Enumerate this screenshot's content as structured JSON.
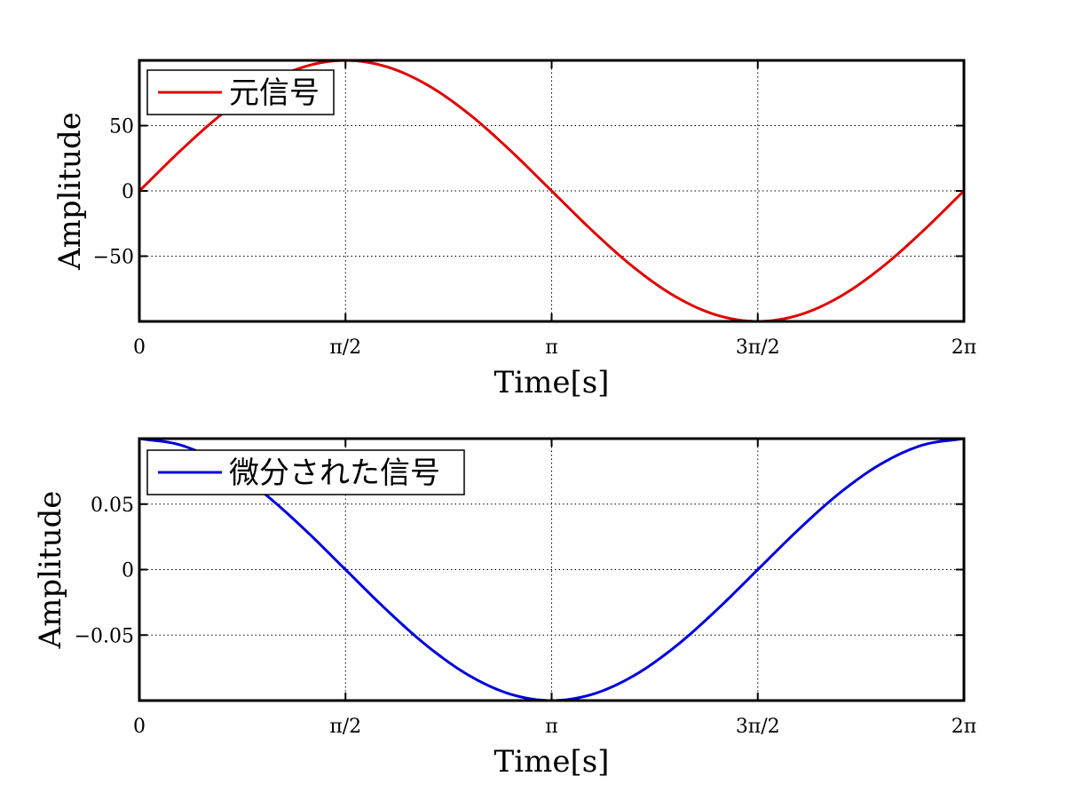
{
  "chart_data": [
    {
      "type": "line",
      "xlabel": "Time[s]",
      "ylabel": "Amplitude",
      "xlim": [
        0,
        6.2832
      ],
      "ylim": [
        -100,
        100
      ],
      "grid": true,
      "legend_position": "top-left",
      "x_ticks": [
        {
          "value": 0,
          "label": "0"
        },
        {
          "value": 1.5708,
          "label": "π/2"
        },
        {
          "value": 3.1416,
          "label": "π"
        },
        {
          "value": 4.7124,
          "label": "3π/2"
        },
        {
          "value": 6.2832,
          "label": "2π"
        }
      ],
      "y_ticks": [
        {
          "value": 50,
          "label": "50"
        },
        {
          "value": 0,
          "label": "0"
        },
        {
          "value": -50,
          "label": "−50"
        }
      ],
      "series": [
        {
          "name": "元信号",
          "color": "#e00000",
          "x": [
            0,
            0.3142,
            0.6283,
            0.9425,
            1.2566,
            1.5708,
            1.885,
            2.1991,
            2.5133,
            2.8274,
            3.1416,
            3.4558,
            3.7699,
            4.0841,
            4.3982,
            4.7124,
            5.0265,
            5.3407,
            5.6549,
            5.969,
            6.2832
          ],
          "y": [
            0,
            30.9,
            58.8,
            80.9,
            95.1,
            100,
            95.1,
            80.9,
            58.8,
            30.9,
            0,
            -30.9,
            -58.8,
            -80.9,
            -95.1,
            -100,
            -95.1,
            -80.9,
            -58.8,
            -30.9,
            0
          ]
        }
      ]
    },
    {
      "type": "line",
      "xlabel": "Time[s]",
      "ylabel": "Amplitude",
      "xlim": [
        0,
        6.2832
      ],
      "ylim": [
        -0.1,
        0.1
      ],
      "grid": true,
      "legend_position": "top-left",
      "x_ticks": [
        {
          "value": 0,
          "label": "0"
        },
        {
          "value": 1.5708,
          "label": "π/2"
        },
        {
          "value": 3.1416,
          "label": "π"
        },
        {
          "value": 4.7124,
          "label": "3π/2"
        },
        {
          "value": 6.2832,
          "label": "2π"
        }
      ],
      "y_ticks": [
        {
          "value": 0.05,
          "label": "0.05"
        },
        {
          "value": 0,
          "label": "0"
        },
        {
          "value": -0.05,
          "label": "−0.05"
        }
      ],
      "series": [
        {
          "name": "微分された信号",
          "color": "#0000dd",
          "x": [
            0,
            0.3142,
            0.6283,
            0.9425,
            1.2566,
            1.5708,
            1.885,
            2.1991,
            2.5133,
            2.8274,
            3.1416,
            3.4558,
            3.7699,
            4.0841,
            4.3982,
            4.7124,
            5.0265,
            5.3407,
            5.6549,
            5.969,
            6.2832
          ],
          "y": [
            0.1,
            0.0951,
            0.0809,
            0.0588,
            0.0309,
            0,
            -0.0309,
            -0.0588,
            -0.0809,
            -0.0951,
            -0.1,
            -0.0951,
            -0.0809,
            -0.0588,
            -0.0309,
            0,
            0.0309,
            0.0588,
            0.0809,
            0.0951,
            0.1
          ]
        }
      ]
    }
  ]
}
